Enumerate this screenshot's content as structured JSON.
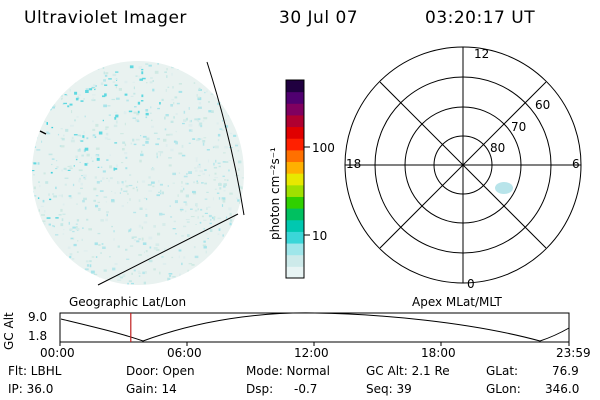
{
  "header": {
    "instrument": "Ultraviolet Imager",
    "date": "30 Jul 07",
    "time": "03:20:17 UT"
  },
  "colorbar": {
    "unit_label": "photon cm⁻²s⁻¹",
    "ticks": [
      {
        "label": "100",
        "value": 100
      },
      {
        "label": "10",
        "value": 10
      }
    ],
    "colors": [
      "#e8f4f4",
      "#cdeaea",
      "#9fe6ea",
      "#3ad6d8",
      "#00c8b0",
      "#00c060",
      "#30d000",
      "#a0e000",
      "#e8e800",
      "#ffb000",
      "#ff7000",
      "#ff2000",
      "#e00000",
      "#b00030",
      "#800060",
      "#500070",
      "#200040"
    ]
  },
  "polar_plot": {
    "mlt_labels": {
      "top": "12",
      "left": "18",
      "right": "6",
      "bottom": "0"
    },
    "lat_labels": [
      "60",
      "70",
      "80"
    ]
  },
  "map_labels": {
    "left": "Geographic Lat/Lon",
    "right": "Apex MLat/MLT"
  },
  "altitude_plot": {
    "ylabel": "GC Alt",
    "y_ticks": [
      "9.0",
      "1.8"
    ],
    "x_ticks": [
      "00:00",
      "06:00",
      "12:00",
      "18:00",
      "23:59"
    ],
    "current_time_hours": 3.338
  },
  "info": {
    "flt": "Flt: LBHL",
    "ip": "IP: 36.0",
    "door": "Door: Open",
    "gain": "Gain: 14",
    "mode": "Mode: Normal",
    "dsp_label": "Dsp:",
    "dsp_value": "-0.7",
    "gc_alt": "GC Alt: 2.1 Re",
    "seq": "Seq: 39",
    "glat_label": "GLat:",
    "glat_value": "76.9",
    "glon_label": "GLon:",
    "glon_value": "346.0"
  }
}
